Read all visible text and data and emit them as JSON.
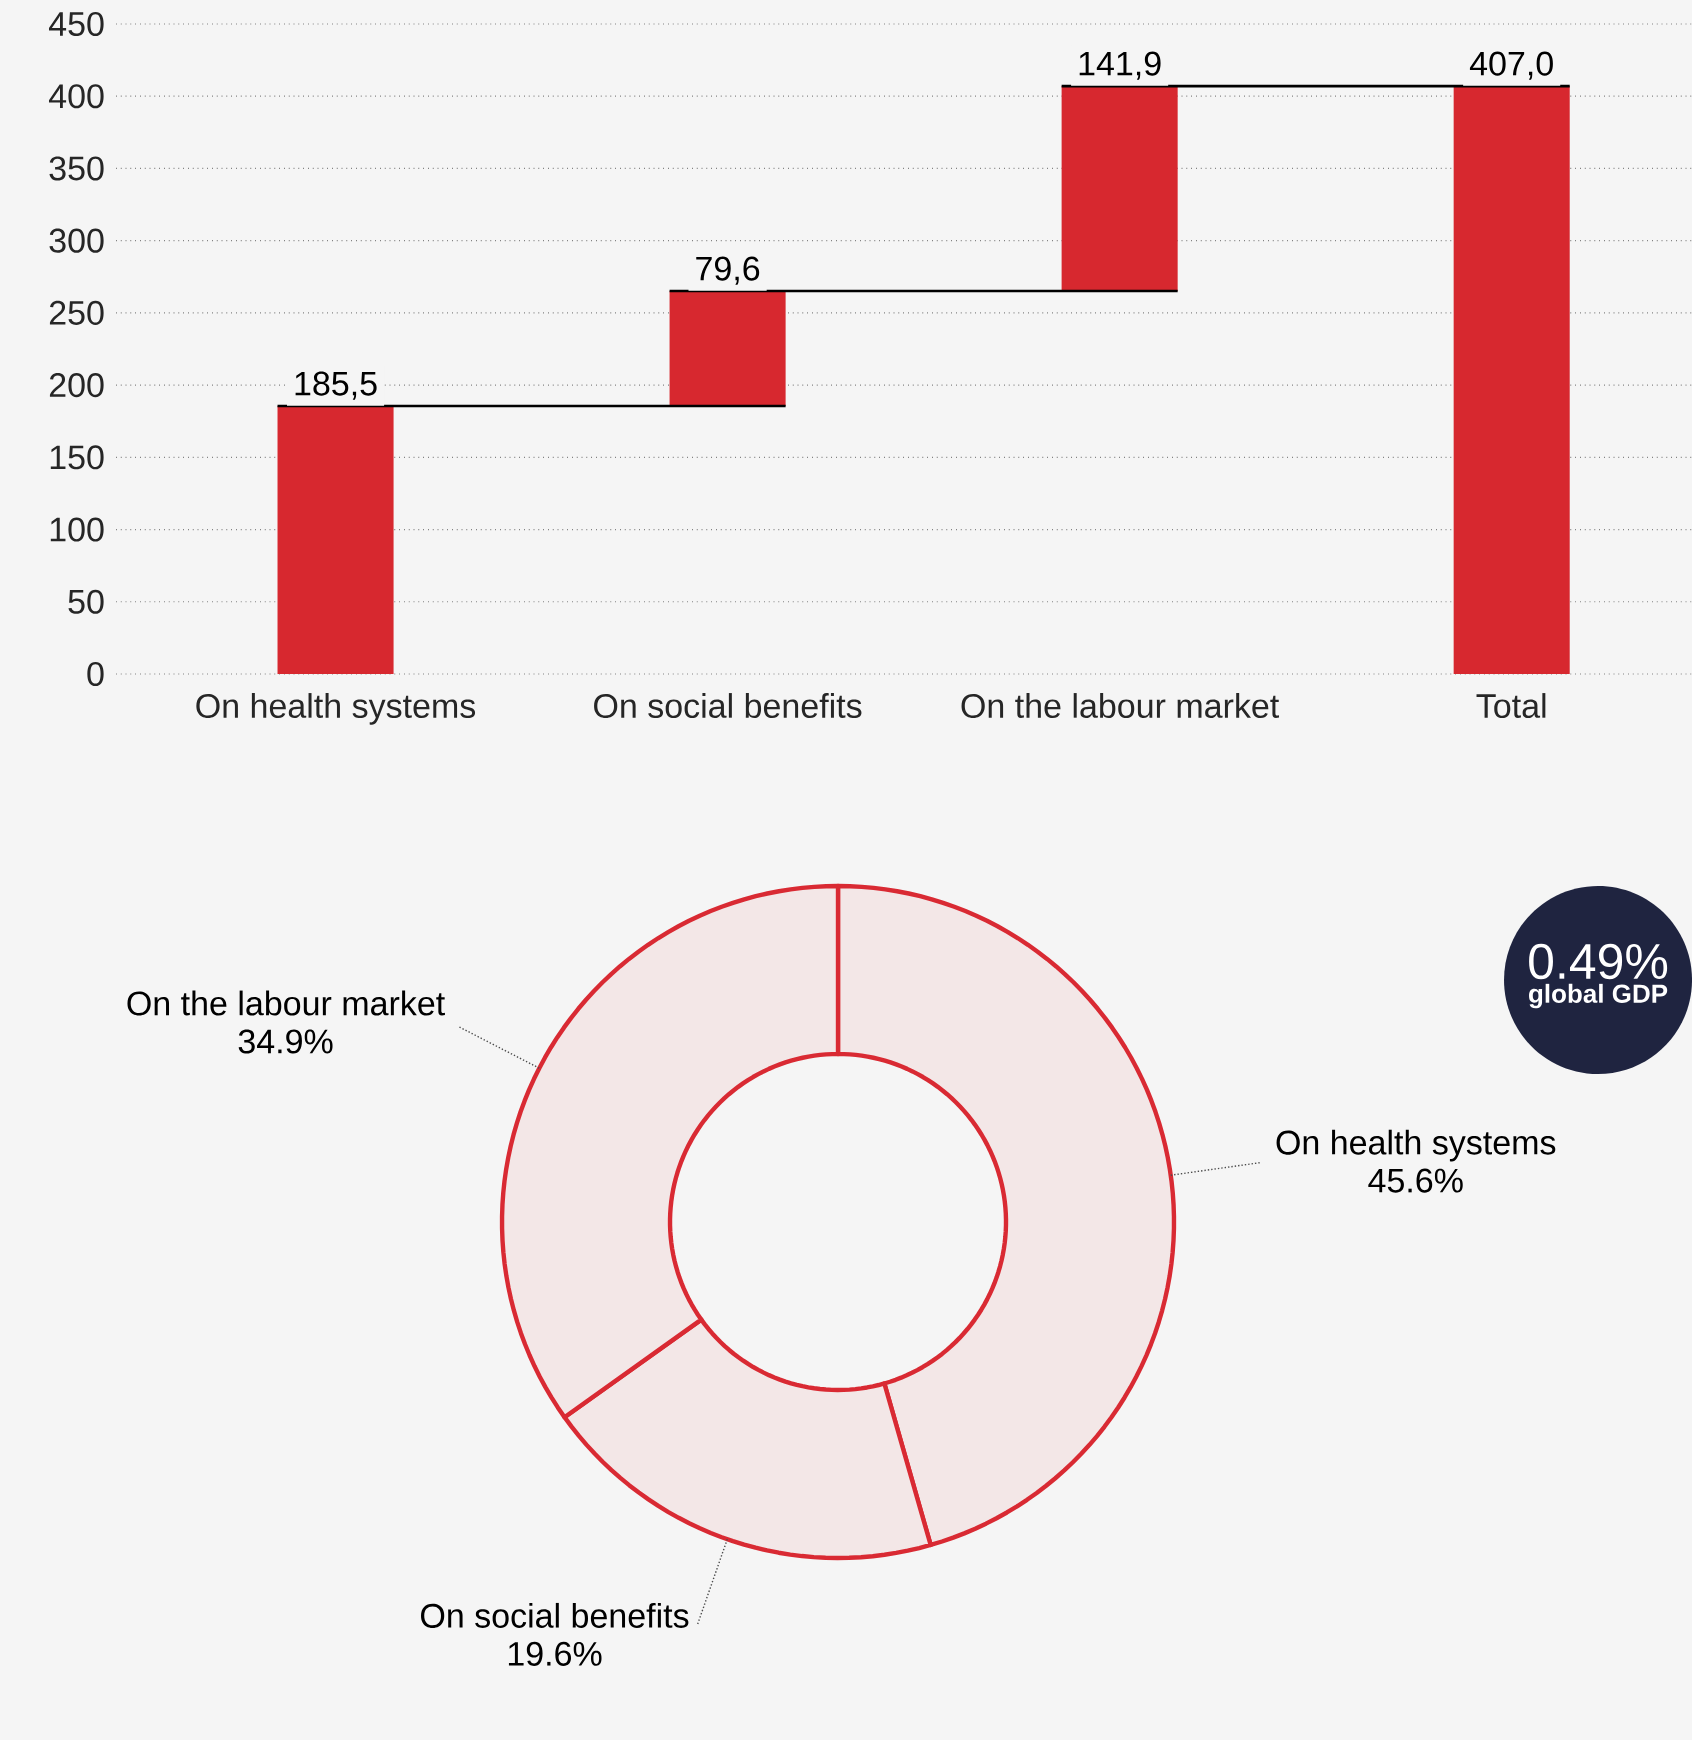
{
  "chart_data": [
    {
      "type": "bar",
      "categories": [
        "On health systems",
        "On social benefits",
        "On the labour market",
        "Total"
      ],
      "values": [
        185.5,
        79.6,
        141.9,
        407.0
      ],
      "base": [
        0,
        185.5,
        265.1,
        0
      ],
      "color": "#d7282f",
      "ylim": [
        0,
        450
      ],
      "yticks": [
        0,
        50,
        100,
        150,
        200,
        250,
        300,
        350,
        400,
        450
      ],
      "grid": "y",
      "value_labels": [
        "185,5",
        "79,6",
        "141,9",
        "407,0"
      ]
    },
    {
      "type": "donut",
      "categories": [
        "On health systems",
        "On social benefits",
        "On the labour market"
      ],
      "values": [
        45.6,
        19.6,
        34.9
      ],
      "colors": [
        "#d92a33",
        "#d92a33",
        "#d92a33"
      ],
      "value_labels": [
        "45.6%",
        "19.6%",
        "34.9%"
      ],
      "annotations": [
        "0.49%",
        "global GDP"
      ]
    }
  ]
}
